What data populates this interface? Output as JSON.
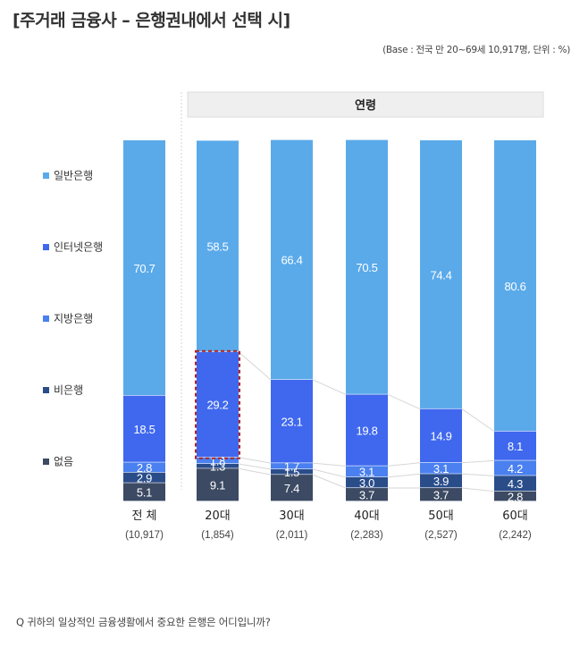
{
  "title": "[주거래 금융사 – 은행권내에서 선택 시]",
  "base_note": "(Base : 전국 만 20~69세 10,917명, 단위 : %)",
  "age_header": "연령",
  "question": "Q  귀하의 일상적인 금융생활에서 중요한 은행은 어디입니까?",
  "chart_data": {
    "type": "bar",
    "stacked": true,
    "categories": [
      "전 체",
      "20대",
      "30대",
      "40대",
      "50대",
      "60대"
    ],
    "n_labels": [
      "(10,917)",
      "(1,854)",
      "(2,011)",
      "(2,283)",
      "(2,527)",
      "(2,242)"
    ],
    "ylim": [
      0,
      100
    ],
    "legend_position": "left",
    "series": [
      {
        "name": "없음",
        "color": "#3c4a63",
        "values": [
          5.1,
          9.1,
          7.4,
          3.7,
          3.7,
          2.8
        ]
      },
      {
        "name": "비은행",
        "color": "#2a4d8a",
        "values": [
          2.9,
          1.3,
          1.5,
          3.0,
          3.9,
          4.3
        ]
      },
      {
        "name": "지방은행",
        "color": "#4a80ef",
        "values": [
          2.8,
          1.8,
          1.7,
          3.1,
          3.1,
          4.2
        ]
      },
      {
        "name": "인터넷은행",
        "color": "#3f68ee",
        "values": [
          18.5,
          29.2,
          23.1,
          19.8,
          14.9,
          8.1
        ]
      },
      {
        "name": "일반은행",
        "color": "#5aaaea",
        "values": [
          70.7,
          58.5,
          66.4,
          70.5,
          74.4,
          80.6
        ]
      }
    ],
    "legend_order": [
      "일반은행",
      "인터넷은행",
      "지방은행",
      "비은행",
      "없음"
    ],
    "highlight": {
      "category": "20대",
      "series": "인터넷은행"
    }
  }
}
